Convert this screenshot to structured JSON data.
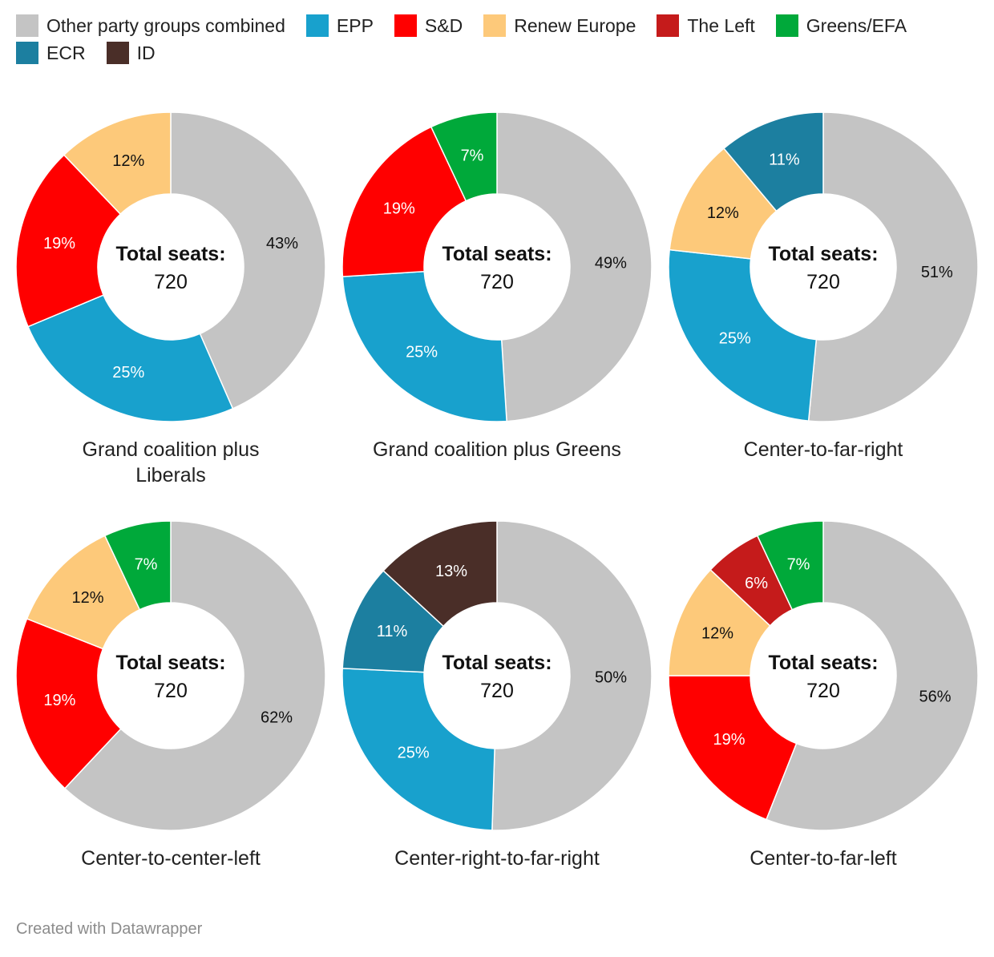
{
  "legend": [
    {
      "key": "other",
      "label": "Other party groups combined",
      "color": "#c4c4c4"
    },
    {
      "key": "epp",
      "label": "EPP",
      "color": "#18a1cd"
    },
    {
      "key": "sd",
      "label": "S&D",
      "color": "#ff0000"
    },
    {
      "key": "renew",
      "label": "Renew Europe",
      "color": "#fdc97a"
    },
    {
      "key": "left",
      "label": "The Left",
      "color": "#c51b1b"
    },
    {
      "key": "greens",
      "label": "Greens/EFA",
      "color": "#00a93a"
    },
    {
      "key": "ecr",
      "label": "ECR",
      "color": "#1c7fa0"
    },
    {
      "key": "id",
      "label": "ID",
      "color": "#4a2e28"
    }
  ],
  "center": {
    "title": "Total seats:",
    "value": "720"
  },
  "chart_data": [
    {
      "type": "pie",
      "title": "Grand coalition plus Liberals",
      "slices": [
        {
          "key": "other",
          "value": 43,
          "label": "43%"
        },
        {
          "key": "epp",
          "value": 25,
          "label": "25%"
        },
        {
          "key": "sd",
          "value": 19,
          "label": "19%"
        },
        {
          "key": "renew",
          "value": 12,
          "label": "12%"
        }
      ]
    },
    {
      "type": "pie",
      "title": "Grand coalition plus Greens",
      "slices": [
        {
          "key": "other",
          "value": 49,
          "label": "49%"
        },
        {
          "key": "epp",
          "value": 25,
          "label": "25%"
        },
        {
          "key": "sd",
          "value": 19,
          "label": "19%"
        },
        {
          "key": "greens",
          "value": 7,
          "label": "7%"
        }
      ]
    },
    {
      "type": "pie",
      "title": "Center-to-far-right",
      "slices": [
        {
          "key": "other",
          "value": 51,
          "label": "51%"
        },
        {
          "key": "epp",
          "value": 25,
          "label": "25%"
        },
        {
          "key": "renew",
          "value": 12,
          "label": "12%"
        },
        {
          "key": "ecr",
          "value": 11,
          "label": "11%"
        }
      ]
    },
    {
      "type": "pie",
      "title": "Center-to-center-left",
      "slices": [
        {
          "key": "other",
          "value": 62,
          "label": "62%"
        },
        {
          "key": "sd",
          "value": 19,
          "label": "19%"
        },
        {
          "key": "renew",
          "value": 12,
          "label": "12%"
        },
        {
          "key": "greens",
          "value": 7,
          "label": "7%"
        }
      ]
    },
    {
      "type": "pie",
      "title": "Center-right-to-far-right",
      "slices": [
        {
          "key": "other",
          "value": 50,
          "label": "50%"
        },
        {
          "key": "epp",
          "value": 25,
          "label": "25%"
        },
        {
          "key": "ecr",
          "value": 11,
          "label": "11%"
        },
        {
          "key": "id",
          "value": 13,
          "label": "13%"
        }
      ]
    },
    {
      "type": "pie",
      "title": "Center-to-far-left",
      "slices": [
        {
          "key": "other",
          "value": 56,
          "label": "56%"
        },
        {
          "key": "sd",
          "value": 19,
          "label": "19%"
        },
        {
          "key": "renew",
          "value": 12,
          "label": "12%"
        },
        {
          "key": "left",
          "value": 6,
          "label": "6%"
        },
        {
          "key": "greens",
          "value": 7,
          "label": "7%"
        }
      ]
    }
  ],
  "footer": "Created with Datawrapper"
}
